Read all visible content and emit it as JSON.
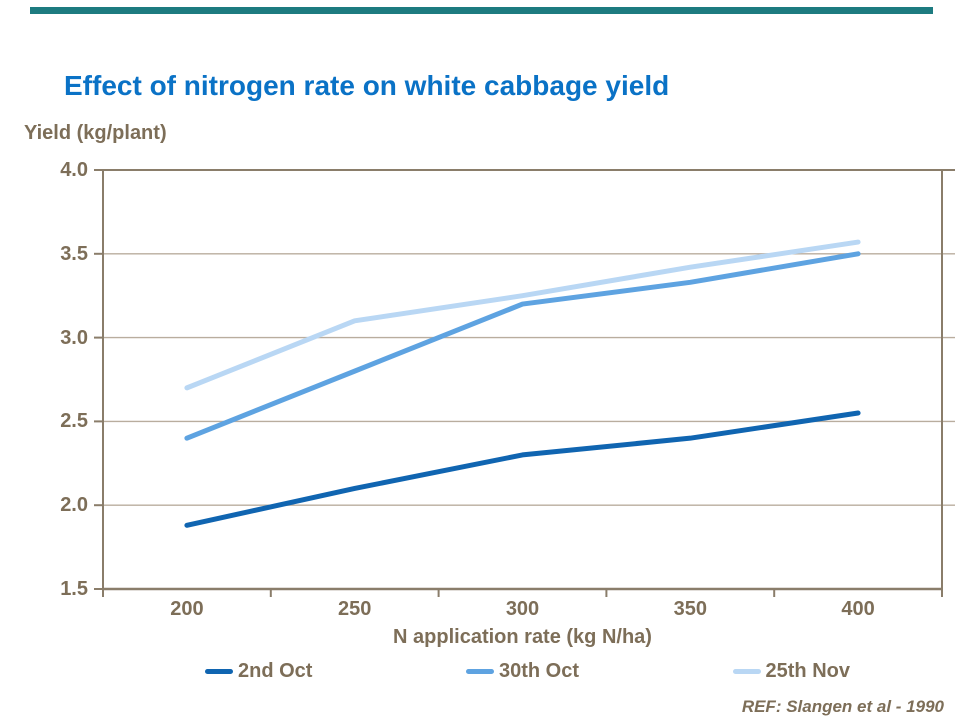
{
  "slide": {
    "accent_bar_color": "#1d7b80",
    "ref": "REF: Slangen et al - 1990"
  },
  "colors": {
    "title_blue": "#0a72c6",
    "text_brown": "#7d6e58",
    "axis_brown": "#8a7d6a",
    "grid_brown": "#b9ad9e"
  },
  "chart_data": {
    "type": "line",
    "title": "Effect of nitrogen rate on white cabbage yield",
    "ylabel": "Yield (kg/plant)",
    "xlabel": "N application rate (kg N/ha)",
    "x": [
      200,
      250,
      300,
      350,
      400
    ],
    "xtick_labels": [
      "200",
      "250",
      "300",
      "350",
      "400"
    ],
    "ylim": [
      1.5,
      4.0
    ],
    "ytick_labels": [
      "4.0",
      "3.5",
      "3.0",
      "2.5",
      "2.0",
      "1.5"
    ],
    "ytick_values": [
      4.0,
      3.5,
      3.0,
      2.5,
      2.0,
      1.5
    ],
    "grid": true,
    "legend_position": "bottom",
    "series": [
      {
        "name": "2nd Oct",
        "color": "#1065b1",
        "values": [
          1.88,
          2.1,
          2.3,
          2.4,
          2.55
        ]
      },
      {
        "name": "30th Oct",
        "color": "#5ea3e1",
        "values": [
          2.4,
          2.8,
          3.2,
          3.33,
          3.5
        ]
      },
      {
        "name": "25th Nov",
        "color": "#b9d7f4",
        "values": [
          2.7,
          3.1,
          3.25,
          3.42,
          3.57
        ]
      }
    ]
  }
}
